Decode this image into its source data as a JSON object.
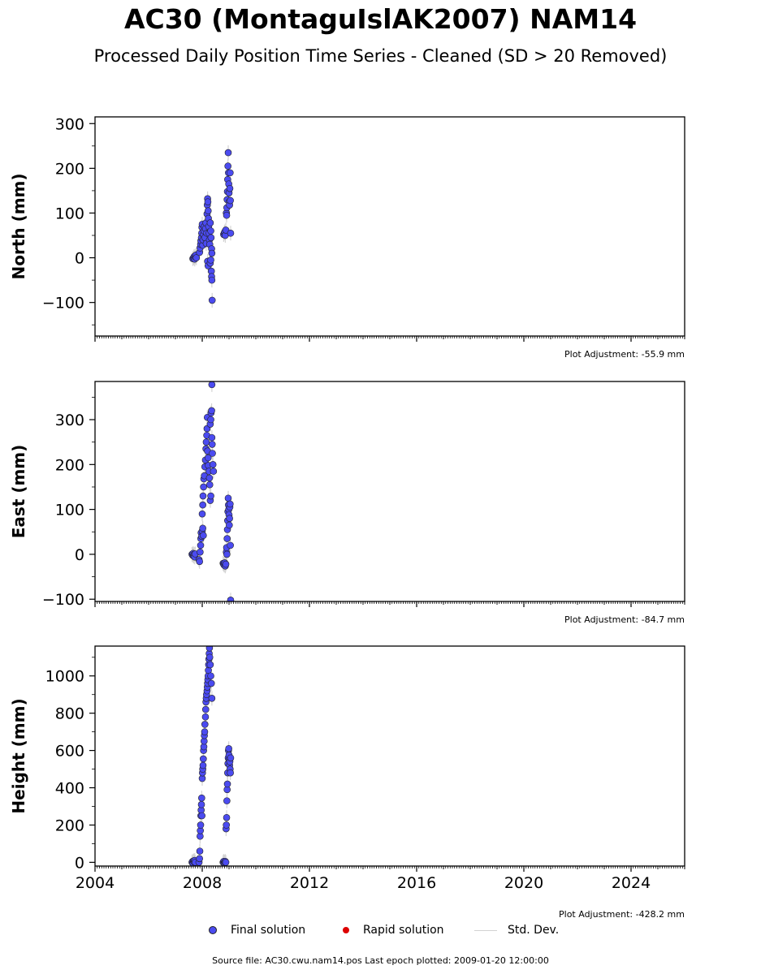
{
  "title": "AC30 (MontaguIslAK2007) NAM14",
  "subtitle": "Processed Daily Position Time Series - Cleaned (SD > 20 Removed)",
  "legend": {
    "final": "Final solution",
    "rapid": "Rapid solution",
    "stddev": "Std. Dev."
  },
  "footer": "Source file: AC30.cwu.nam14.pos  Last epoch plotted: 2009-01-20 12:00:00",
  "colors": {
    "final": "#4b4bf0",
    "rapid": "#dd0000",
    "stddev": "#d3d3d3",
    "marker_edge": "#222222"
  },
  "chart_data": [
    {
      "type": "scatter",
      "ylabel": "North (mm)",
      "xlim": [
        2004.0,
        2026.0
      ],
      "ylim": [
        -175,
        315
      ],
      "yticks": [
        -100,
        0,
        100,
        200,
        300
      ],
      "adjustment": "Plot Adjustment: -55.9 mm",
      "series": [
        {
          "name": "Final solution",
          "points": [
            [
              2007.65,
              -2
            ],
            [
              2007.68,
              0
            ],
            [
              2007.7,
              3
            ],
            [
              2007.72,
              -3
            ],
            [
              2007.74,
              2
            ],
            [
              2007.76,
              6
            ],
            [
              2007.78,
              0
            ],
            [
              2007.9,
              12
            ],
            [
              2007.92,
              22
            ],
            [
              2007.94,
              30
            ],
            [
              2007.95,
              38
            ],
            [
              2007.97,
              45
            ],
            [
              2007.98,
              55
            ],
            [
              2007.99,
              68
            ],
            [
              2008.0,
              75
            ],
            [
              2008.02,
              28
            ],
            [
              2008.03,
              40
            ],
            [
              2008.05,
              52
            ],
            [
              2008.07,
              60
            ],
            [
              2008.08,
              70
            ],
            [
              2008.1,
              45
            ],
            [
              2008.12,
              65
            ],
            [
              2008.14,
              78
            ],
            [
              2008.15,
              32
            ],
            [
              2008.17,
              55
            ],
            [
              2008.18,
              98
            ],
            [
              2008.19,
              118
            ],
            [
              2008.2,
              132
            ],
            [
              2008.21,
              125
            ],
            [
              2008.22,
              105
            ],
            [
              2008.23,
              88
            ],
            [
              2008.24,
              70
            ],
            [
              2008.25,
              55
            ],
            [
              2008.27,
              40
            ],
            [
              2008.28,
              30
            ],
            [
              2008.3,
              78
            ],
            [
              2008.32,
              60
            ],
            [
              2008.33,
              45
            ],
            [
              2008.35,
              20
            ],
            [
              2008.36,
              10
            ],
            [
              2008.2,
              -8
            ],
            [
              2008.22,
              -18
            ],
            [
              2008.3,
              -12
            ],
            [
              2008.32,
              -5
            ],
            [
              2008.34,
              -30
            ],
            [
              2008.35,
              -42
            ],
            [
              2008.36,
              -50
            ],
            [
              2008.37,
              -95
            ],
            [
              2008.8,
              52
            ],
            [
              2008.82,
              55
            ],
            [
              2008.84,
              58
            ],
            [
              2008.86,
              50
            ],
            [
              2008.88,
              62
            ],
            [
              2008.9,
              100
            ],
            [
              2008.91,
              95
            ],
            [
              2008.92,
              112
            ],
            [
              2008.93,
              130
            ],
            [
              2008.94,
              148
            ],
            [
              2008.95,
              175
            ],
            [
              2008.96,
              205
            ],
            [
              2008.97,
              235
            ],
            [
              2008.98,
              190
            ],
            [
              2008.99,
              165
            ],
            [
              2009.0,
              145
            ],
            [
              2009.01,
              125
            ],
            [
              2009.02,
              118
            ],
            [
              2009.03,
              155
            ],
            [
              2009.04,
              190
            ],
            [
              2009.05,
              128
            ],
            [
              2009.06,
              55
            ]
          ]
        }
      ]
    },
    {
      "type": "scatter",
      "ylabel": "East (mm)",
      "xlim": [
        2004.0,
        2026.0
      ],
      "ylim": [
        -105,
        385
      ],
      "yticks": [
        -100,
        0,
        100,
        200,
        300
      ],
      "adjustment": "Plot Adjustment: -84.7 mm",
      "series": [
        {
          "name": "Final solution",
          "points": [
            [
              2007.62,
              0
            ],
            [
              2007.64,
              -2
            ],
            [
              2007.66,
              2
            ],
            [
              2007.68,
              -4
            ],
            [
              2007.7,
              0
            ],
            [
              2007.72,
              -6
            ],
            [
              2007.74,
              1
            ],
            [
              2007.88,
              -12
            ],
            [
              2007.9,
              -16
            ],
            [
              2007.92,
              5
            ],
            [
              2007.94,
              20
            ],
            [
              2007.95,
              35
            ],
            [
              2007.96,
              48
            ],
            [
              2007.98,
              40
            ],
            [
              2008.0,
              52
            ],
            [
              2008.02,
              58
            ],
            [
              2008.04,
              42
            ],
            [
              2008.0,
              90
            ],
            [
              2008.02,
              110
            ],
            [
              2008.03,
              130
            ],
            [
              2008.05,
              150
            ],
            [
              2008.06,
              168
            ],
            [
              2008.08,
              175
            ],
            [
              2008.1,
              195
            ],
            [
              2008.12,
              210
            ],
            [
              2008.14,
              235
            ],
            [
              2008.15,
              250
            ],
            [
              2008.17,
              265
            ],
            [
              2008.18,
              280
            ],
            [
              2008.19,
              305
            ],
            [
              2008.2,
              230
            ],
            [
              2008.22,
              215
            ],
            [
              2008.23,
              198
            ],
            [
              2008.25,
              185
            ],
            [
              2008.27,
              170
            ],
            [
              2008.28,
              155
            ],
            [
              2008.3,
              290
            ],
            [
              2008.32,
              300
            ],
            [
              2008.33,
              315
            ],
            [
              2008.35,
              320
            ],
            [
              2008.36,
              260
            ],
            [
              2008.37,
              245
            ],
            [
              2008.38,
              225
            ],
            [
              2008.4,
              200
            ],
            [
              2008.42,
              185
            ],
            [
              2008.3,
              120
            ],
            [
              2008.32,
              130
            ],
            [
              2008.36,
              378
            ],
            [
              2008.78,
              -20
            ],
            [
              2008.8,
              -22
            ],
            [
              2008.82,
              -24
            ],
            [
              2008.84,
              -19
            ],
            [
              2008.86,
              -26
            ],
            [
              2008.88,
              -22
            ],
            [
              2008.9,
              5
            ],
            [
              2008.91,
              15
            ],
            [
              2008.92,
              0
            ],
            [
              2008.93,
              35
            ],
            [
              2008.94,
              55
            ],
            [
              2008.95,
              75
            ],
            [
              2008.96,
              95
            ],
            [
              2008.97,
              125
            ],
            [
              2008.98,
              110
            ],
            [
              2008.99,
              100
            ],
            [
              2009.0,
              88
            ],
            [
              2009.01,
              65
            ],
            [
              2009.02,
              80
            ],
            [
              2009.03,
              105
            ],
            [
              2009.04,
              112
            ],
            [
              2009.05,
              20
            ],
            [
              2009.06,
              -102
            ]
          ]
        }
      ]
    },
    {
      "type": "scatter",
      "ylabel": "Height (mm)",
      "xlim": [
        2004.0,
        2026.0
      ],
      "ylim": [
        -20,
        1160
      ],
      "yticks": [
        0,
        200,
        400,
        600,
        800,
        1000
      ],
      "adjustment": "Plot Adjustment: -428.2 mm",
      "series": [
        {
          "name": "Final solution",
          "points": [
            [
              2007.62,
              0
            ],
            [
              2007.64,
              5
            ],
            [
              2007.66,
              -5
            ],
            [
              2007.68,
              8
            ],
            [
              2007.7,
              2
            ],
            [
              2007.72,
              10
            ],
            [
              2007.74,
              0
            ],
            [
              2007.88,
              0
            ],
            [
              2007.9,
              20
            ],
            [
              2007.91,
              60
            ],
            [
              2007.92,
              140
            ],
            [
              2007.93,
              170
            ],
            [
              2007.94,
              200
            ],
            [
              2007.95,
              250
            ],
            [
              2007.96,
              280
            ],
            [
              2007.97,
              310
            ],
            [
              2007.98,
              345
            ],
            [
              2007.99,
              250
            ],
            [
              2008.0,
              450
            ],
            [
              2008.01,
              480
            ],
            [
              2008.02,
              500
            ],
            [
              2008.03,
              520
            ],
            [
              2008.04,
              555
            ],
            [
              2008.05,
              600
            ],
            [
              2008.06,
              620
            ],
            [
              2008.07,
              650
            ],
            [
              2008.08,
              680
            ],
            [
              2008.09,
              700
            ],
            [
              2008.1,
              740
            ],
            [
              2008.12,
              780
            ],
            [
              2008.13,
              820
            ],
            [
              2008.14,
              860
            ],
            [
              2008.15,
              880
            ],
            [
              2008.16,
              900
            ],
            [
              2008.18,
              920
            ],
            [
              2008.19,
              940
            ],
            [
              2008.2,
              960
            ],
            [
              2008.21,
              980
            ],
            [
              2008.22,
              1000
            ],
            [
              2008.23,
              1030
            ],
            [
              2008.24,
              1060
            ],
            [
              2008.25,
              1090
            ],
            [
              2008.26,
              1120
            ],
            [
              2008.27,
              1150
            ],
            [
              2008.28,
              1100
            ],
            [
              2008.3,
              1060
            ],
            [
              2008.32,
              1000
            ],
            [
              2008.34,
              960
            ],
            [
              2008.36,
              880
            ],
            [
              2008.78,
              0
            ],
            [
              2008.8,
              5
            ],
            [
              2008.82,
              -3
            ],
            [
              2008.84,
              2
            ],
            [
              2008.86,
              5
            ],
            [
              2008.88,
              0
            ],
            [
              2008.89,
              180
            ],
            [
              2008.9,
              200
            ],
            [
              2008.91,
              240
            ],
            [
              2008.92,
              330
            ],
            [
              2008.93,
              390
            ],
            [
              2008.94,
              420
            ],
            [
              2008.95,
              480
            ],
            [
              2008.96,
              530
            ],
            [
              2008.97,
              560
            ],
            [
              2008.98,
              600
            ],
            [
              2008.99,
              610
            ],
            [
              2009.0,
              575
            ],
            [
              2009.01,
              550
            ],
            [
              2009.02,
              520
            ],
            [
              2009.03,
              540
            ],
            [
              2009.04,
              500
            ],
            [
              2009.05,
              480
            ],
            [
              2009.06,
              560
            ]
          ]
        }
      ]
    }
  ],
  "xticks": [
    2004,
    2008,
    2012,
    2016,
    2020,
    2024
  ]
}
